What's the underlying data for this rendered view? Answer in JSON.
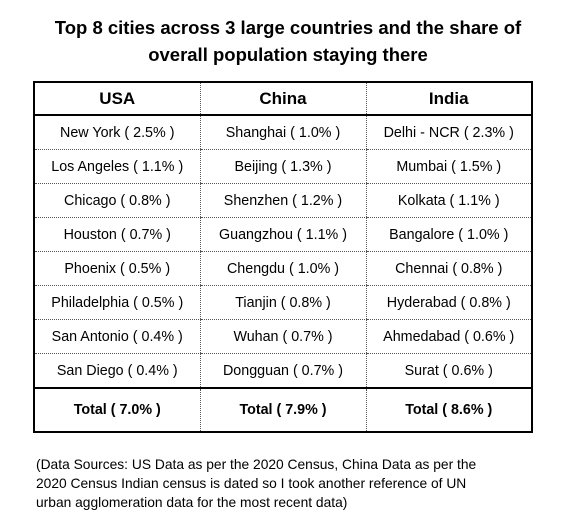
{
  "title": {
    "line1": "Top 8 cities across 3 large countries and the share of",
    "line2": "overall population staying there"
  },
  "table": {
    "headers": [
      "USA",
      "China",
      "India"
    ],
    "rows": [
      [
        "New York ( 2.5% )",
        "Shanghai ( 1.0% )",
        "Delhi - NCR ( 2.3% )"
      ],
      [
        "Los Angeles ( 1.1% )",
        "Beijing ( 1.3% )",
        "Mumbai ( 1.5% )"
      ],
      [
        "Chicago ( 0.8% )",
        "Shenzhen ( 1.2% )",
        "Kolkata ( 1.1% )"
      ],
      [
        "Houston ( 0.7% )",
        "Guangzhou ( 1.1% )",
        "Bangalore ( 1.0% )"
      ],
      [
        "Phoenix ( 0.5% )",
        "Chengdu ( 1.0% )",
        "Chennai ( 0.8% )"
      ],
      [
        "Philadelphia ( 0.5% )",
        "Tianjin ( 0.8% )",
        "Hyderabad ( 0.8% )"
      ],
      [
        "San Antonio ( 0.4% )",
        "Wuhan ( 0.7% )",
        "Ahmedabad ( 0.6% )"
      ],
      [
        "San Diego ( 0.4% )",
        "Dongguan ( 0.7% )",
        "Surat ( 0.6% )"
      ]
    ],
    "totals": [
      "Total ( 7.0% )",
      "Total ( 7.9% )",
      "Total ( 8.6% )"
    ]
  },
  "footnote": {
    "line1": "(Data Sources:  US Data as per the 2020 Census, China Data as per the",
    "line2": "2020 Census Indian census is dated so I took another reference of UN",
    "line3": "urban agglomeration data for the most recent data)"
  }
}
